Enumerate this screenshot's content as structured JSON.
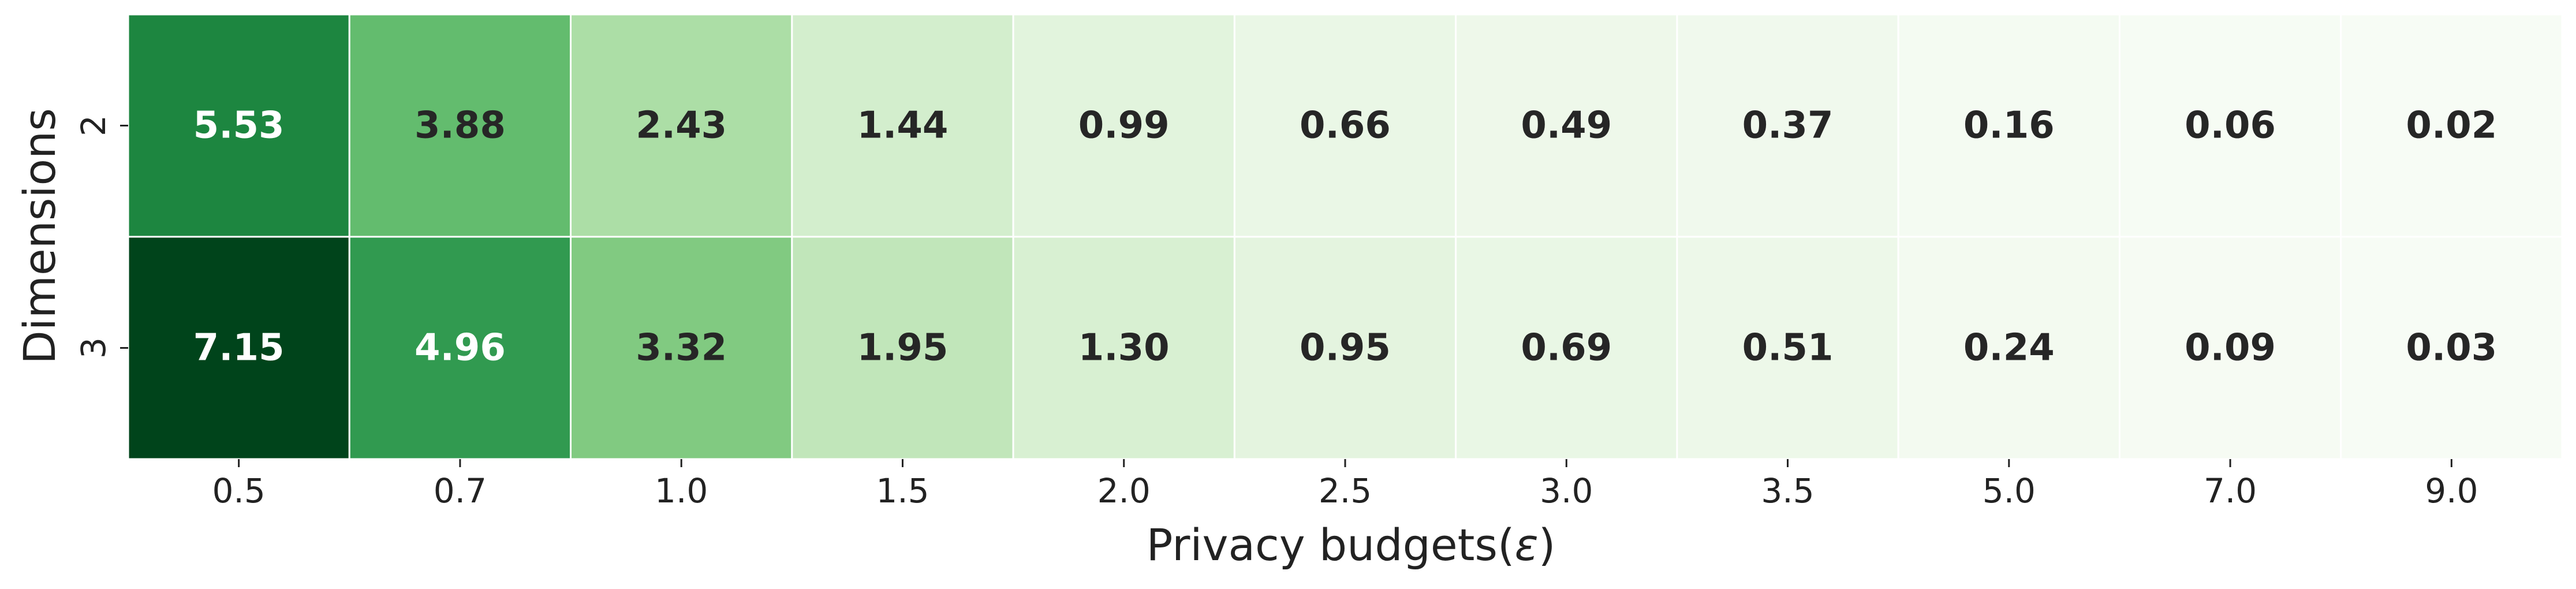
{
  "chart_data": {
    "type": "heatmap",
    "title": "",
    "xlabel": "Privacy budgets(",
    "xlabel_symbol": "ε",
    "xlabel_suffix": ")",
    "ylabel": "Dimensions",
    "x_categories": [
      "0.5",
      "0.7",
      "1.0",
      "1.5",
      "2.0",
      "2.5",
      "3.0",
      "3.5",
      "5.0",
      "7.0",
      "9.0"
    ],
    "y_categories": [
      "2",
      "3"
    ],
    "values": [
      [
        5.53,
        3.88,
        2.43,
        1.44,
        0.99,
        0.66,
        0.49,
        0.37,
        0.16,
        0.06,
        0.02
      ],
      [
        7.15,
        4.96,
        3.32,
        1.95,
        1.3,
        0.95,
        0.69,
        0.51,
        0.24,
        0.09,
        0.03
      ]
    ],
    "value_labels": [
      [
        "5.53",
        "3.88",
        "2.43",
        "1.44",
        "0.99",
        "0.66",
        "0.49",
        "0.37",
        "0.16",
        "0.06",
        "0.02"
      ],
      [
        "7.15",
        "4.96",
        "3.32",
        "1.95",
        "1.30",
        "0.95",
        "0.69",
        "0.51",
        "0.24",
        "0.09",
        "0.03"
      ]
    ],
    "colormap": "Greens",
    "color_range": [
      0.02,
      7.15
    ],
    "colorbar": false,
    "grid": false,
    "cell_border_color": "#ffffff",
    "label_color_dark": "#262626",
    "label_color_light": "#ffffff"
  }
}
